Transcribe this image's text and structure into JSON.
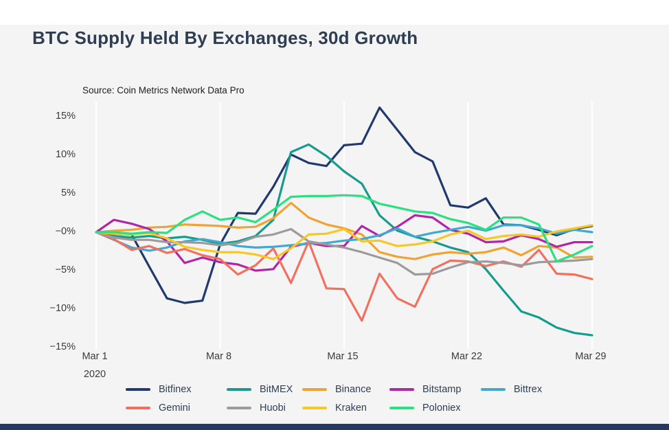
{
  "page": {
    "title": "BTC Supply Held By Exchanges, 30d Growth",
    "source_note": "Source: Coin Metrics Network Data Pro",
    "colors": {
      "background_panel": "#f4f4f5",
      "top_strip": "#ffffff",
      "bottom_bar": "#253a60",
      "title_text": "#2d3e53",
      "axis_text": "#3b3b3b",
      "gridline": "#ffffff"
    }
  },
  "chart_data": {
    "type": "line",
    "title": "BTC Supply Held By Exchanges, 30d Growth",
    "source": "Source: Coin Metrics Network Data Pro",
    "x_unit": "day of March 2020, daily points Mar 1 - Mar 29",
    "x_tick_labels": [
      "Mar 1",
      "Mar 8",
      "Mar 15",
      "Mar 22",
      "Mar 29"
    ],
    "x_tick_days": [
      1,
      8,
      15,
      22,
      29
    ],
    "x_year_label": "2020",
    "y_tick_labels": [
      "15%",
      "10%",
      "5%",
      "−0%",
      "−5%",
      "−10%",
      "−15%"
    ],
    "y_tick_values": [
      15,
      10,
      5,
      0,
      -5,
      -10,
      -15
    ],
    "ylim": [
      -16.8,
      17.0
    ],
    "grid": "vertical white weekly gridlines, no horizontal gridlines",
    "legend_position": "bottom",
    "legend_rows": [
      [
        "Bitfinex",
        "BitMEX",
        "Binance",
        "Bitstamp",
        "Bittrex"
      ],
      [
        "Gemini",
        "Huobi",
        "Kraken",
        "Poloniex"
      ]
    ],
    "series": [
      {
        "name": "Bitfinex",
        "color": "#1f3a6d",
        "values": [
          0,
          -0.2,
          -0.3,
          -4.5,
          -8.6,
          -9.2,
          -8.9,
          -1.6,
          2.5,
          2.4,
          5.9,
          10.1,
          9.0,
          8.6,
          11.3,
          11.5,
          16.2,
          13.3,
          10.4,
          9.2,
          3.5,
          3.2,
          4.4,
          1.0,
          0.9,
          0.3,
          -0.4,
          0.4,
          0.8
        ]
      },
      {
        "name": "BitMEX",
        "color": "#169b8d",
        "values": [
          0,
          -0.5,
          -0.7,
          -0.5,
          -0.8,
          -0.6,
          -1.0,
          -1.5,
          -1.2,
          -0.5,
          1.6,
          10.4,
          11.4,
          9.9,
          7.9,
          6.3,
          2.2,
          0.2,
          -0.6,
          -1.2,
          -2.0,
          -2.6,
          -4.8,
          -7.6,
          -10.3,
          -11.1,
          -12.4,
          -13.1,
          -13.4
        ]
      },
      {
        "name": "Binance",
        "color": "#f2a230",
        "values": [
          0,
          0.2,
          0.3,
          0.6,
          0.7,
          1.0,
          0.9,
          0.8,
          0.6,
          0.7,
          1.8,
          3.8,
          1.9,
          1.0,
          0.5,
          -0.3,
          -2.6,
          -3.2,
          -3.5,
          -2.9,
          -2.6,
          -2.8,
          -2.6,
          -2.0,
          -3.0,
          -1.8,
          -2.0,
          -3.3,
          -3.2
        ]
      },
      {
        "name": "Bitstamp",
        "color": "#b126a6",
        "values": [
          0,
          1.6,
          1.1,
          0.4,
          -1.2,
          -4.0,
          -3.3,
          -3.9,
          -4.2,
          -5.0,
          -4.8,
          -1.9,
          -1.4,
          -1.8,
          -1.8,
          0.8,
          -0.5,
          0.7,
          2.2,
          1.9,
          0.3,
          -0.2,
          -1.3,
          -1.2,
          -0.4,
          -0.9,
          -1.9,
          -1.3,
          -1.3
        ]
      },
      {
        "name": "Bittrex",
        "color": "#3fa9d0",
        "values": [
          0,
          -1.0,
          -2.0,
          -2.4,
          -2.0,
          -1.2,
          -0.9,
          -1.3,
          -1.8,
          -2.0,
          -1.9,
          -1.7,
          -1.5,
          -1.4,
          -1.1,
          -0.9,
          -0.4,
          0.5,
          -0.6,
          -0.1,
          0.3,
          0.7,
          0.2,
          0.9,
          0.9,
          0.5,
          -0.2,
          0.3,
          0.0
        ]
      },
      {
        "name": "Gemini",
        "color": "#f1705f",
        "values": [
          0,
          -0.9,
          -2.3,
          -1.8,
          -2.7,
          -2.2,
          -3.0,
          -3.5,
          -5.5,
          -4.3,
          -2.1,
          -6.6,
          -1.2,
          -7.3,
          -7.4,
          -11.5,
          -5.4,
          -8.6,
          -9.7,
          -4.8,
          -3.7,
          -3.8,
          -4.4,
          -3.8,
          -4.5,
          -2.3,
          -5.4,
          -5.5,
          -6.1
        ]
      },
      {
        "name": "Huobi",
        "color": "#9b9b9b",
        "values": [
          0,
          -0.7,
          -1.0,
          -1.0,
          -1.3,
          -1.3,
          -1.4,
          -1.7,
          -1.4,
          -0.6,
          -0.3,
          0.4,
          -1.2,
          -1.6,
          -2.0,
          -2.6,
          -3.3,
          -4.0,
          -5.5,
          -5.4,
          -4.6,
          -3.9,
          -3.8,
          -4.0,
          -4.3,
          -3.9,
          -3.8,
          -3.7,
          -3.5
        ]
      },
      {
        "name": "Kraken",
        "color": "#f6c725",
        "values": [
          0,
          -0.2,
          -0.3,
          -0.1,
          -0.8,
          -1.9,
          -2.3,
          -2.6,
          -2.6,
          -2.9,
          -3.5,
          -2.1,
          -0.3,
          -0.2,
          0.4,
          -1.2,
          -1.1,
          -1.8,
          -1.6,
          -1.2,
          -0.3,
          0.2,
          -0.9,
          -0.5,
          -0.3,
          -0.6,
          0.1,
          0.5,
          0.9
        ]
      },
      {
        "name": "Poloniex",
        "color": "#2be081",
        "values": [
          0,
          0.0,
          -0.2,
          0.0,
          -0.1,
          1.6,
          2.7,
          1.6,
          1.9,
          1.3,
          2.9,
          4.6,
          4.7,
          4.7,
          4.8,
          4.7,
          3.7,
          3.2,
          2.7,
          2.5,
          1.7,
          1.2,
          0.3,
          1.9,
          1.9,
          1.0,
          -3.8,
          -2.9,
          -1.8
        ]
      }
    ]
  }
}
